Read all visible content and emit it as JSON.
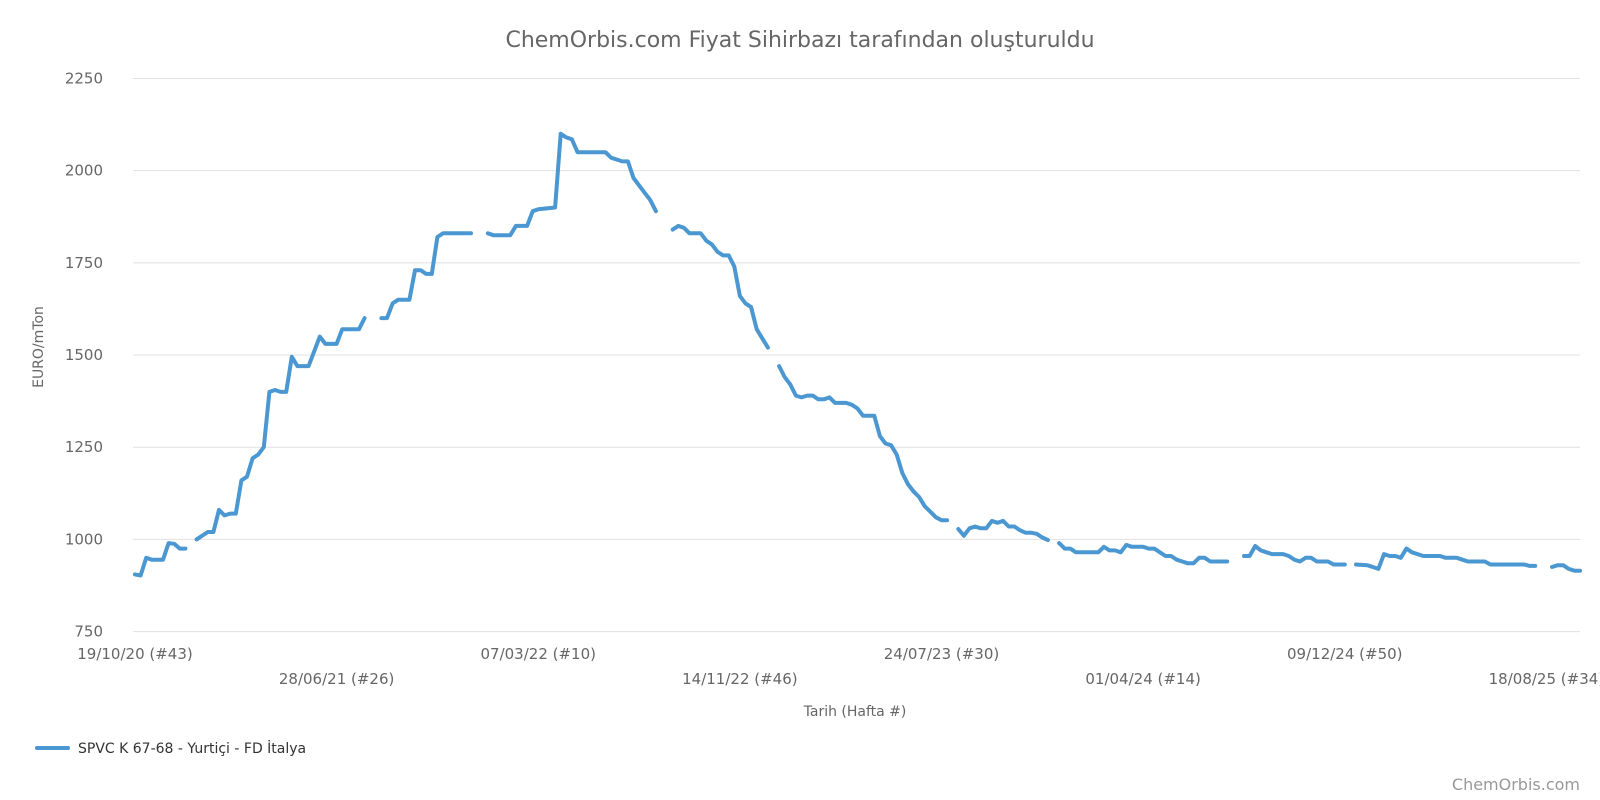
{
  "chart_data": {
    "type": "line",
    "title": "ChemOrbis.com Fiyat Sihirbazı tarafından oluşturuldu",
    "xlabel": "Tarih (Hafta #)",
    "ylabel": "EURO/mTon",
    "ylim": [
      700,
      2300
    ],
    "yticks": [
      750,
      1000,
      1250,
      1500,
      1750,
      2000,
      2250
    ],
    "grid": true,
    "legend_position": "bottom-left",
    "credit": "ChemOrbis.com",
    "xticks": [
      {
        "label": "19/10/20 (#43)",
        "x": 0,
        "row": 0
      },
      {
        "label": "28/06/21 (#26)",
        "x": 36,
        "row": 1
      },
      {
        "label": "07/03/22 (#10)",
        "x": 72,
        "row": 0
      },
      {
        "label": "14/11/22 (#46)",
        "x": 108,
        "row": 1
      },
      {
        "label": "24/07/23 (#30)",
        "x": 144,
        "row": 0
      },
      {
        "label": "01/04/24 (#14)",
        "x": 180,
        "row": 1
      },
      {
        "label": "09/12/24 (#50)",
        "x": 216,
        "row": 0
      },
      {
        "label": "18/08/25 (#34)",
        "x": 252,
        "row": 1
      }
    ],
    "x_range": [
      0,
      258
    ],
    "series": [
      {
        "name": "SPVC K 67-68 - Yurtiçi - FD İtalya",
        "color": "#4a97d1",
        "segments": [
          [
            [
              0,
              905
            ],
            [
              1,
              902
            ],
            [
              2,
              950
            ],
            [
              3,
              945
            ],
            [
              5,
              945
            ],
            [
              6,
              990
            ],
            [
              7,
              988
            ],
            [
              8,
              975
            ],
            [
              9,
              975
            ]
          ],
          [
            [
              11,
              1000
            ],
            [
              12,
              1010
            ],
            [
              13,
              1020
            ],
            [
              14,
              1020
            ],
            [
              15,
              1080
            ],
            [
              16,
              1065
            ],
            [
              17,
              1070
            ],
            [
              18,
              1070
            ],
            [
              19,
              1160
            ],
            [
              20,
              1170
            ],
            [
              21,
              1220
            ],
            [
              22,
              1230
            ],
            [
              23,
              1250
            ],
            [
              24,
              1400
            ],
            [
              25,
              1405
            ],
            [
              26,
              1400
            ],
            [
              27,
              1400
            ],
            [
              28,
              1495
            ],
            [
              29,
              1470
            ],
            [
              31,
              1470
            ],
            [
              32,
              1510
            ],
            [
              33,
              1550
            ],
            [
              34,
              1530
            ],
            [
              36,
              1530
            ],
            [
              37,
              1570
            ],
            [
              40,
              1570
            ],
            [
              41,
              1600
            ]
          ],
          [
            [
              44,
              1600
            ],
            [
              45,
              1600
            ],
            [
              46,
              1640
            ],
            [
              47,
              1650
            ],
            [
              49,
              1650
            ],
            [
              50,
              1730
            ],
            [
              51,
              1730
            ],
            [
              52,
              1720
            ],
            [
              53,
              1720
            ],
            [
              54,
              1820
            ],
            [
              55,
              1830
            ],
            [
              60,
              1830
            ]
          ],
          [
            [
              63,
              1830
            ],
            [
              64,
              1825
            ],
            [
              67,
              1825
            ],
            [
              68,
              1850
            ],
            [
              70,
              1850
            ],
            [
              71,
              1890
            ],
            [
              72,
              1895
            ],
            [
              75,
              1900
            ],
            [
              76,
              2100
            ],
            [
              77,
              2090
            ],
            [
              78,
              2085
            ],
            [
              79,
              2050
            ],
            [
              80,
              2050
            ],
            [
              84,
              2050
            ],
            [
              85,
              2035
            ],
            [
              87,
              2025
            ],
            [
              88,
              2025
            ],
            [
              89,
              1980
            ],
            [
              90,
              1960
            ],
            [
              91,
              1940
            ],
            [
              92,
              1920
            ],
            [
              93,
              1890
            ]
          ],
          [
            [
              96,
              1840
            ],
            [
              97,
              1850
            ],
            [
              98,
              1845
            ],
            [
              99,
              1830
            ],
            [
              101,
              1830
            ],
            [
              102,
              1810
            ],
            [
              103,
              1800
            ],
            [
              104,
              1780
            ],
            [
              105,
              1770
            ],
            [
              106,
              1770
            ],
            [
              107,
              1740
            ],
            [
              108,
              1660
            ],
            [
              109,
              1640
            ],
            [
              110,
              1630
            ],
            [
              111,
              1570
            ],
            [
              112,
              1545
            ],
            [
              113,
              1520
            ]
          ],
          [
            [
              115,
              1470
            ],
            [
              116,
              1440
            ],
            [
              117,
              1420
            ],
            [
              118,
              1390
            ],
            [
              119,
              1385
            ],
            [
              120,
              1390
            ],
            [
              121,
              1390
            ],
            [
              122,
              1380
            ],
            [
              123,
              1380
            ],
            [
              124,
              1385
            ],
            [
              125,
              1370
            ],
            [
              127,
              1370
            ],
            [
              128,
              1365
            ],
            [
              129,
              1355
            ],
            [
              130,
              1335
            ],
            [
              132,
              1335
            ],
            [
              133,
              1280
            ],
            [
              134,
              1260
            ],
            [
              135,
              1255
            ],
            [
              136,
              1230
            ],
            [
              137,
              1180
            ],
            [
              138,
              1150
            ],
            [
              139,
              1130
            ],
            [
              140,
              1115
            ],
            [
              141,
              1090
            ],
            [
              142,
              1075
            ],
            [
              143,
              1060
            ],
            [
              144,
              1052
            ],
            [
              145,
              1052
            ]
          ],
          [
            [
              147,
              1028
            ],
            [
              148,
              1010
            ],
            [
              149,
              1030
            ],
            [
              150,
              1035
            ],
            [
              151,
              1030
            ],
            [
              152,
              1030
            ],
            [
              153,
              1050
            ],
            [
              154,
              1045
            ],
            [
              155,
              1050
            ],
            [
              156,
              1035
            ],
            [
              157,
              1035
            ],
            [
              158,
              1025
            ],
            [
              159,
              1018
            ],
            [
              160,
              1018
            ],
            [
              161,
              1015
            ],
            [
              162,
              1005
            ],
            [
              163,
              998
            ]
          ],
          [
            [
              165,
              990
            ],
            [
              166,
              975
            ],
            [
              167,
              975
            ],
            [
              168,
              965
            ],
            [
              171,
              965
            ],
            [
              172,
              965
            ],
            [
              173,
              980
            ],
            [
              174,
              970
            ],
            [
              175,
              970
            ],
            [
              176,
              965
            ],
            [
              177,
              985
            ],
            [
              178,
              980
            ],
            [
              180,
              980
            ],
            [
              181,
              975
            ],
            [
              182,
              975
            ],
            [
              183,
              965
            ],
            [
              184,
              955
            ],
            [
              185,
              955
            ],
            [
              186,
              945
            ],
            [
              187,
              940
            ],
            [
              188,
              935
            ],
            [
              189,
              935
            ],
            [
              190,
              950
            ],
            [
              191,
              950
            ],
            [
              192,
              940
            ],
            [
              193,
              940
            ],
            [
              195,
              940
            ]
          ],
          [
            [
              198,
              955
            ],
            [
              199,
              955
            ],
            [
              200,
              982
            ],
            [
              201,
              970
            ],
            [
              202,
              965
            ],
            [
              203,
              960
            ],
            [
              205,
              960
            ],
            [
              206,
              955
            ],
            [
              207,
              945
            ],
            [
              208,
              940
            ],
            [
              209,
              950
            ],
            [
              210,
              950
            ],
            [
              211,
              940
            ],
            [
              212,
              940
            ],
            [
              213,
              940
            ],
            [
              214,
              932
            ],
            [
              216,
              932
            ]
          ],
          [
            [
              218,
              932
            ],
            [
              220,
              930
            ],
            [
              221,
              925
            ],
            [
              222,
              920
            ],
            [
              223,
              960
            ],
            [
              224,
              955
            ],
            [
              225,
              955
            ],
            [
              226,
              950
            ],
            [
              227,
              975
            ],
            [
              228,
              965
            ],
            [
              229,
              960
            ],
            [
              230,
              955
            ],
            [
              233,
              955
            ],
            [
              234,
              950
            ],
            [
              236,
              950
            ],
            [
              237,
              945
            ],
            [
              238,
              940
            ],
            [
              241,
              940
            ],
            [
              242,
              932
            ],
            [
              247,
              932
            ],
            [
              248,
              932
            ],
            [
              249,
              928
            ],
            [
              250,
              928
            ]
          ],
          [
            [
              253,
              925
            ],
            [
              254,
              930
            ],
            [
              255,
              930
            ],
            [
              256,
              920
            ],
            [
              257,
              915
            ],
            [
              258,
              915
            ]
          ]
        ]
      }
    ]
  }
}
